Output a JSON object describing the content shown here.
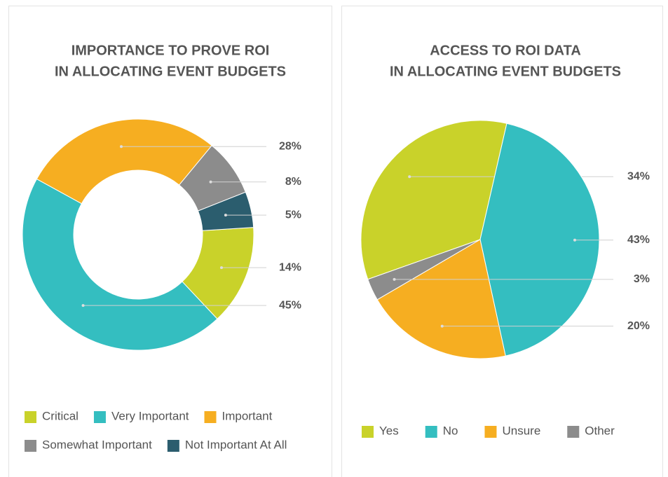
{
  "chart_data": [
    {
      "type": "donut",
      "title": [
        "IMPORTANCE TO PROVE ROI",
        "IN ALLOCATING EVENT BUDGETS"
      ],
      "categories": [
        "Critical",
        "Very Important",
        "Important",
        "Somewhat Important",
        "Not Important At All"
      ],
      "values": [
        14,
        45,
        28,
        8,
        5
      ],
      "value_labels": [
        "14%",
        "45%",
        "28%",
        "8%",
        "5%"
      ],
      "colors": [
        "#c9d22a",
        "#34bec0",
        "#f6ae21",
        "#8c8c8c",
        "#2b5d6e"
      ]
    },
    {
      "type": "pie",
      "title": [
        "ACCESS TO ROI DATA",
        "IN ALLOCATING EVENT BUDGETS"
      ],
      "categories": [
        "Yes",
        "No",
        "Unsure",
        "Other"
      ],
      "values": [
        34,
        43,
        20,
        3
      ],
      "value_labels": [
        "34%",
        "43%",
        "20%",
        "3%"
      ],
      "colors": [
        "#c9d22a",
        "#34bec0",
        "#f6ae21",
        "#8c8c8c"
      ]
    }
  ]
}
